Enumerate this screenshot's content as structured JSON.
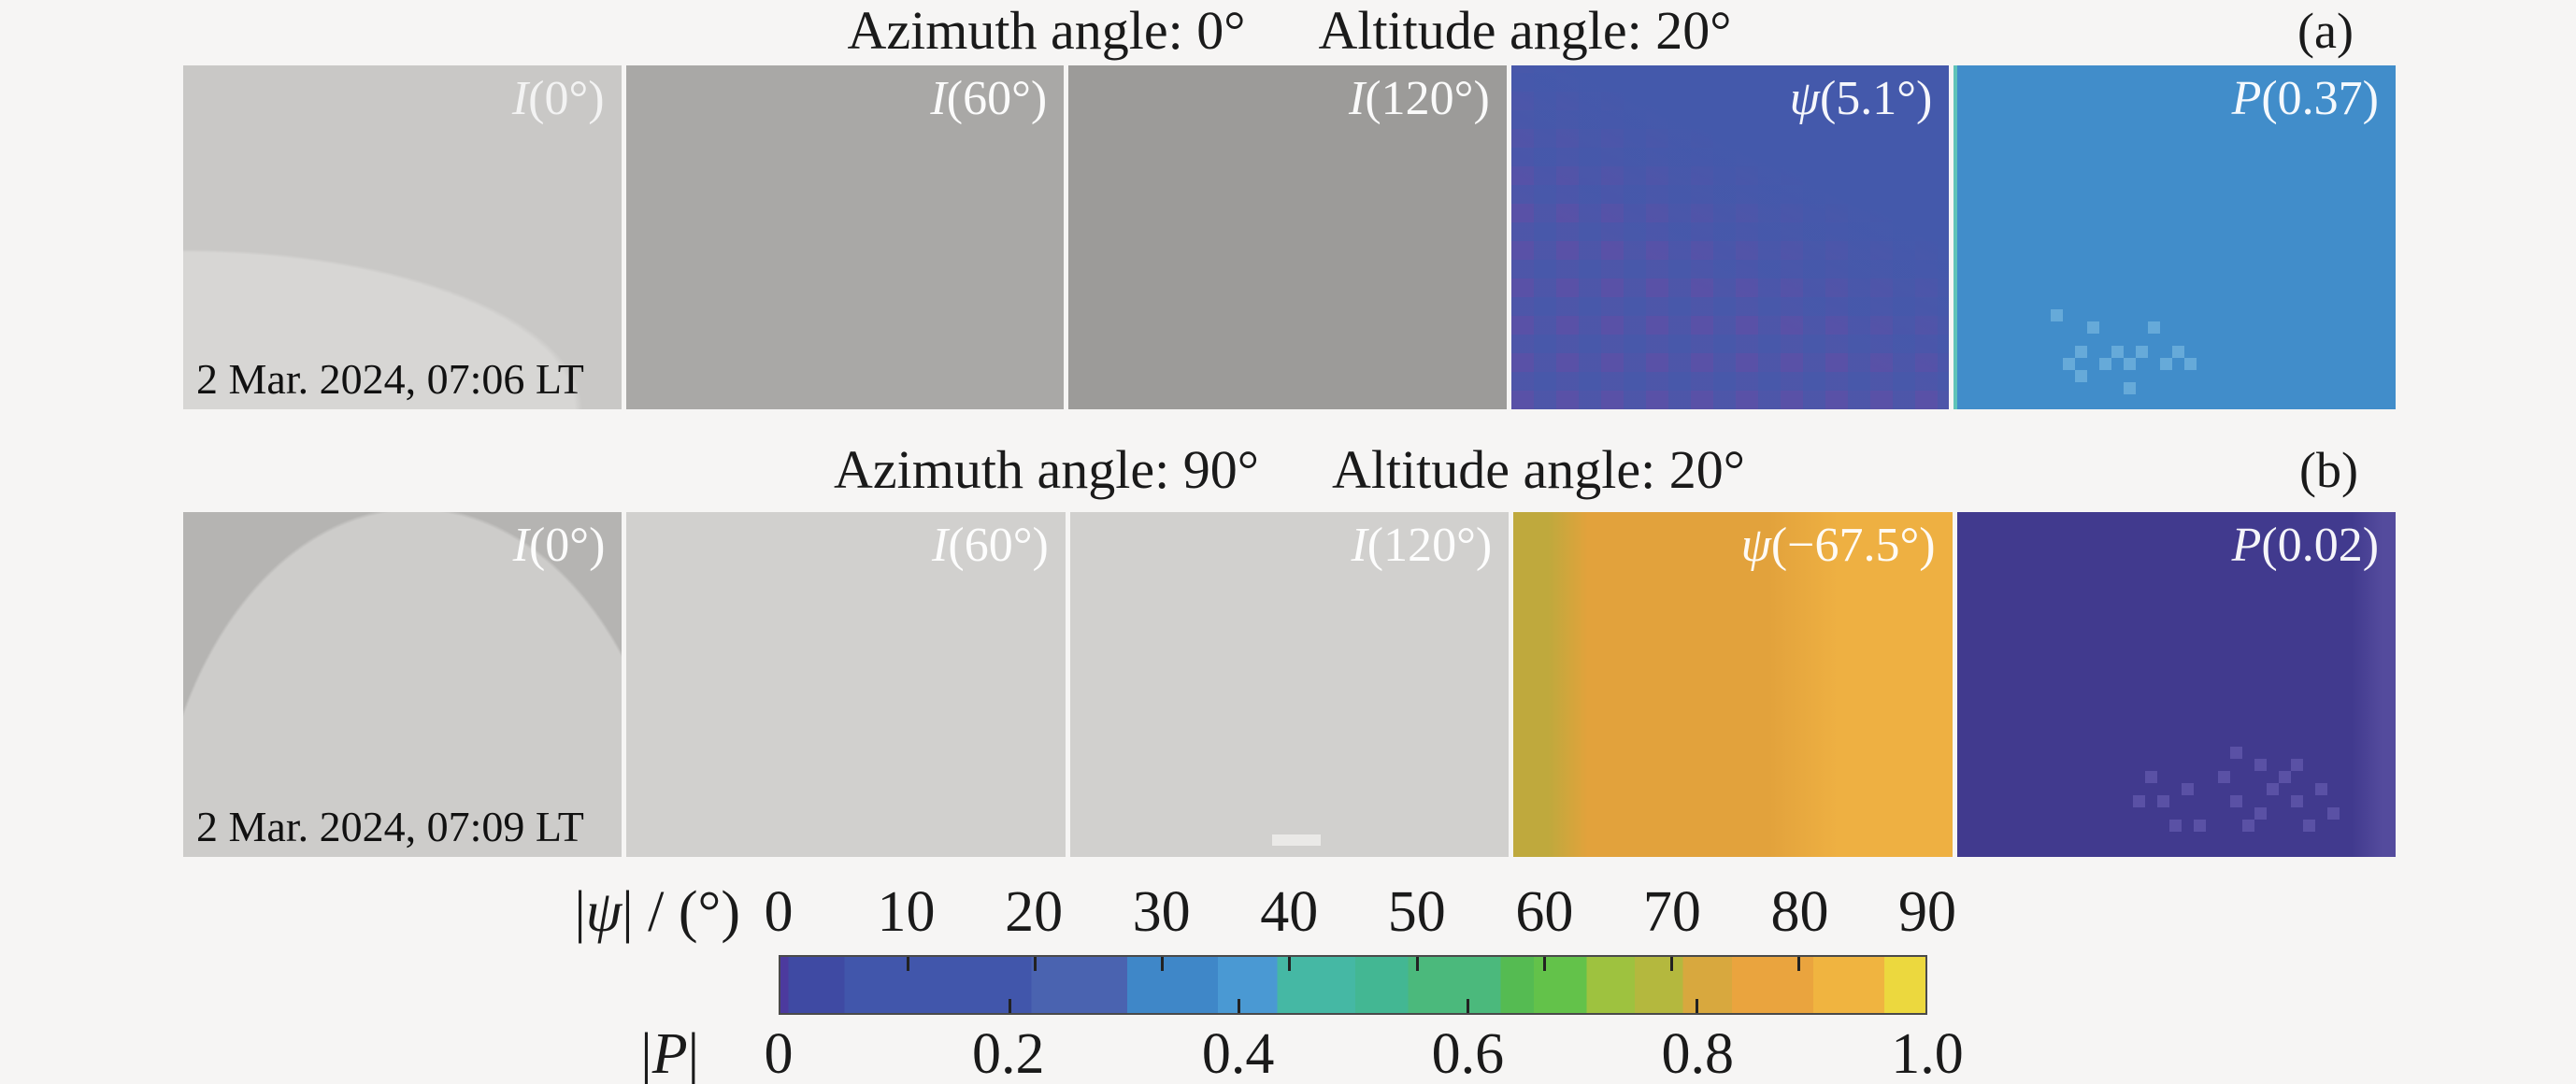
{
  "titles": {
    "a": {
      "azimuth": "Azimuth angle: 0°",
      "altitude": "Altitude angle: 20°",
      "corner": "(a)"
    },
    "b": {
      "azimuth": "Azimuth angle: 90°",
      "altitude": "Altitude angle: 20°",
      "corner": "(b)"
    }
  },
  "rows": {
    "a": {
      "timestamp": "2 Mar. 2024, 07:06 LT",
      "panels": [
        {
          "var": "I",
          "arg": "(0°)",
          "colors": {
            "c1": "#c9c8c6",
            "c2": "#d7d6d4"
          }
        },
        {
          "var": "I",
          "arg": "(60°)",
          "colors": {
            "c1": "#a9a8a6"
          }
        },
        {
          "var": "I",
          "arg": "(120°)",
          "colors": {
            "c1": "#9c9b99"
          }
        },
        {
          "var": "ψ",
          "arg": "(5.1°)",
          "colors": {
            "c1": "#5951a7",
            "c2": "#4459ab",
            "c2o": "rgba(68,89,171,0.55)"
          }
        },
        {
          "var": "P",
          "arg": "(0.37)",
          "colors": {
            "c1": "#418dca",
            "spk": "#66aad9",
            "edge": "#5fc3b8"
          }
        }
      ]
    },
    "b": {
      "timestamp": "2 Mar. 2024, 07:09 LT",
      "panels": [
        {
          "var": "I",
          "arg": "(0°)",
          "colors": {
            "c1": "#cdccca",
            "c2": "#b5b4b2"
          }
        },
        {
          "var": "I",
          "arg": "(60°)",
          "colors": {
            "c1": "#d1d0ce"
          }
        },
        {
          "var": "I",
          "arg": "(120°)",
          "colors": {
            "c1": "#d1d0ce",
            "spot": "#eae9e7"
          }
        },
        {
          "var": "ψ",
          "arg": "(−67.5°)",
          "colors": {
            "c1": "#bfa93d",
            "c2": "#e2a23c",
            "c3": "#eeb042"
          }
        },
        {
          "var": "P",
          "arg": "(0.02)",
          "colors": {
            "c1": "#413a8e",
            "c2": "#544b9d",
            "spk": "#5a51a5"
          }
        }
      ]
    }
  },
  "colorbar": {
    "psi_label_parts": [
      "|",
      "ψ",
      "| / (°)"
    ],
    "psi_ticks": [
      "0",
      "10",
      "20",
      "30",
      "40",
      "50",
      "60",
      "70",
      "80",
      "90"
    ],
    "p_label_parts": [
      "|",
      "P",
      "|"
    ],
    "p_ticks": [
      "0",
      "0.2",
      "0.4",
      "0.6",
      "0.8",
      "1.0"
    ],
    "bands": [
      {
        "color": "#4c3a9e",
        "to": 0.7
      },
      {
        "color": "#3f4aa3",
        "to": 5.6
      },
      {
        "color": "#4156ab",
        "to": 21.9
      },
      {
        "color": "#4a63b0",
        "to": 30.3
      },
      {
        "color": "#3f87c8",
        "to": 38.2
      },
      {
        "color": "#4a99d3",
        "to": 43.4
      },
      {
        "color": "#45b8a4",
        "to": 50.2
      },
      {
        "color": "#43b793",
        "to": 54.8
      },
      {
        "color": "#4bb97c",
        "to": 62.9
      },
      {
        "color": "#55bb52",
        "to": 65.8
      },
      {
        "color": "#63c24a",
        "to": 70.4
      },
      {
        "color": "#9ec23f",
        "to": 74.6
      },
      {
        "color": "#b4b83e",
        "to": 78.8
      },
      {
        "color": "#d8a83e",
        "to": 83.1
      },
      {
        "color": "#eaa43e",
        "to": 90.2
      },
      {
        "color": "#f0b440",
        "to": 96.4
      },
      {
        "color": "#ecd83e",
        "to": 100
      }
    ]
  },
  "chart_data": {
    "type": "heatmap",
    "description": "Sky polarization imaging figure: two observation rows, five image panels each (three intensity channels, polarization angle ψ, degree of polarization P), sharing one dual-scale colorbar.",
    "rows": [
      {
        "label": "(a)",
        "azimuth_angle_deg": 0,
        "altitude_angle_deg": 20,
        "timestamp": "2 Mar. 2024, 07:06 LT",
        "panels": [
          {
            "quantity": "I",
            "polarizer_angle": "0°"
          },
          {
            "quantity": "I",
            "polarizer_angle": "60°"
          },
          {
            "quantity": "I",
            "polarizer_angle": "120°"
          },
          {
            "quantity": "ψ",
            "mean_value_deg": 5.1
          },
          {
            "quantity": "P",
            "mean_value": 0.37
          }
        ]
      },
      {
        "label": "(b)",
        "azimuth_angle_deg": 90,
        "altitude_angle_deg": 20,
        "timestamp": "2 Mar. 2024, 07:09 LT",
        "panels": [
          {
            "quantity": "I",
            "polarizer_angle": "0°"
          },
          {
            "quantity": "I",
            "polarizer_angle": "60°"
          },
          {
            "quantity": "I",
            "polarizer_angle": "120°"
          },
          {
            "quantity": "ψ",
            "mean_value_deg": -67.5
          },
          {
            "quantity": "P",
            "mean_value": 0.02
          }
        ]
      }
    ],
    "colorbar": {
      "psi_axis": {
        "label": "|ψ| / (°)",
        "range": [
          0,
          90
        ],
        "ticks": [
          0,
          10,
          20,
          30,
          40,
          50,
          60,
          70,
          80,
          90
        ]
      },
      "p_axis": {
        "label": "|P|",
        "range": [
          0,
          1.0
        ],
        "ticks": [
          0,
          0.2,
          0.4,
          0.6,
          0.8,
          1.0
        ]
      },
      "legend_position": "bottom",
      "grid": false
    }
  }
}
